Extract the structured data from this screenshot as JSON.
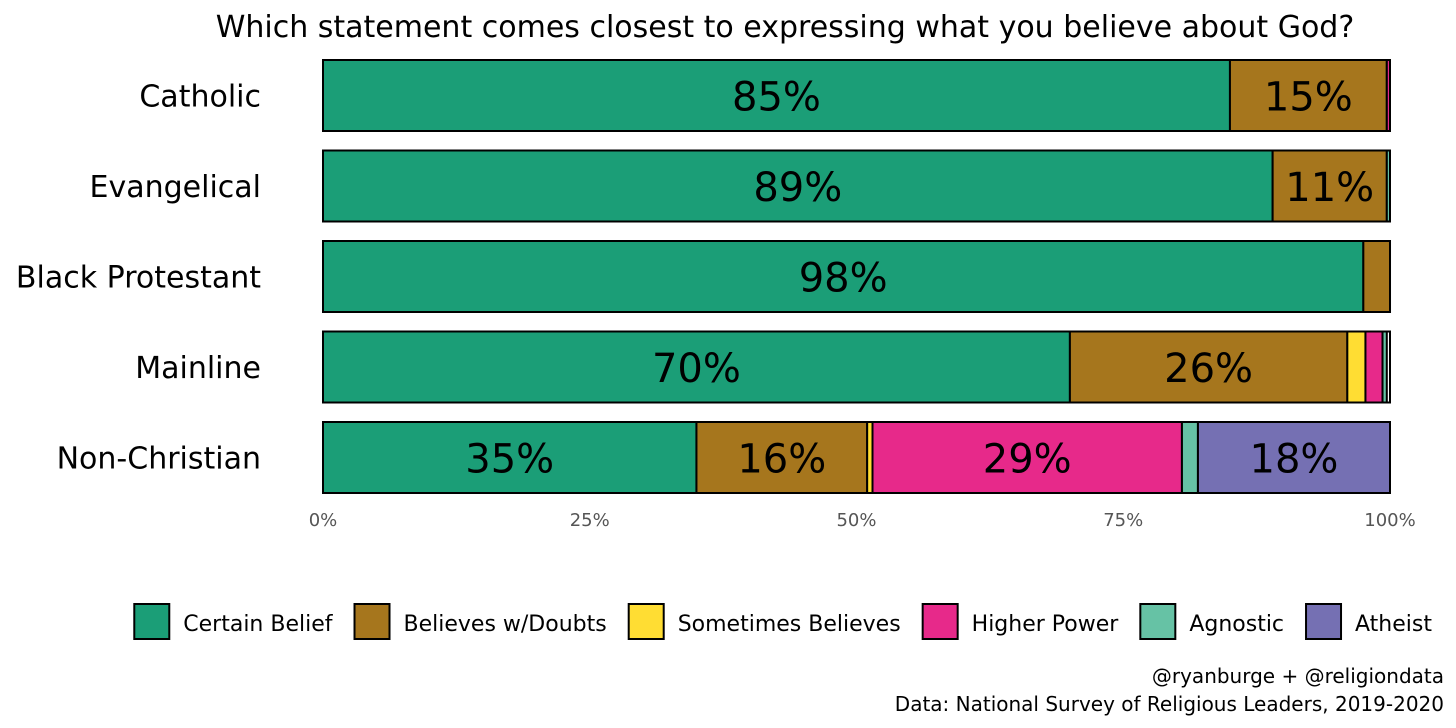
{
  "chart_data": {
    "type": "bar",
    "orientation": "horizontal",
    "stacked": true,
    "title": "Which statement comes closest to expressing what you believe about God?",
    "categories": [
      "Catholic",
      "Evangelical",
      "Black Protestant",
      "Mainline",
      "Non-Christian"
    ],
    "series": [
      {
        "name": "Certain Belief",
        "color": "#1b9e77",
        "values": [
          85,
          89,
          97.5,
          70,
          35
        ]
      },
      {
        "name": "Believes w/Doubts",
        "color": "#a6761d",
        "values": [
          14.7,
          10.7,
          2.5,
          26,
          16
        ]
      },
      {
        "name": "Sometimes Believes",
        "color": "#ffdd33",
        "values": [
          0,
          0,
          0,
          1.7,
          0.5
        ]
      },
      {
        "name": "Higher Power",
        "color": "#e7298a",
        "values": [
          0.3,
          0,
          0,
          1.6,
          29
        ]
      },
      {
        "name": "Agnostic",
        "color": "#66c2a5",
        "values": [
          0,
          0.3,
          0,
          0.4,
          1.5
        ]
      },
      {
        "name": "Atheist",
        "color": "#7570b3",
        "values": [
          0,
          0,
          0,
          0,
          18
        ]
      }
    ],
    "data_labels": [
      [
        "85%",
        "15%",
        "",
        "",
        "",
        ""
      ],
      [
        "89%",
        "11%",
        "",
        "",
        "",
        ""
      ],
      [
        "98%",
        "",
        "",
        "",
        "",
        ""
      ],
      [
        "70%",
        "26%",
        "",
        "",
        "",
        ""
      ],
      [
        "35%",
        "16%",
        "",
        "29%",
        "",
        "18%"
      ]
    ],
    "xlim": [
      0,
      100
    ],
    "xticks": [
      "0%",
      "25%",
      "50%",
      "75%",
      "100%"
    ],
    "xlabel": "",
    "ylabel": "",
    "legend_position": "bottom",
    "grid": false
  },
  "caption": {
    "line1": "@ryanburge + @religiondata",
    "line2": "Data: National Survey of Religious Leaders, 2019-2020"
  }
}
